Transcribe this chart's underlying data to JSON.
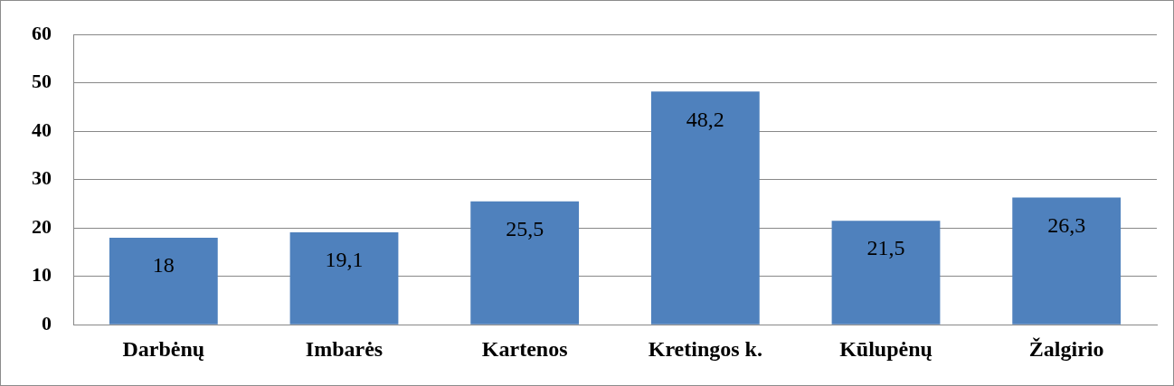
{
  "chart_data": {
    "type": "bar",
    "categories": [
      "Darbėnų",
      "Imbarės",
      "Kartenos",
      "Kretingos k.",
      "Kūlupėnų",
      "Žalgirio"
    ],
    "values": [
      18,
      19.1,
      25.5,
      48.2,
      21.5,
      26.3
    ],
    "value_labels": [
      "18",
      "19,1",
      "25,5",
      "48,2",
      "21,5",
      "26,3"
    ],
    "color": "#4f81bd",
    "ylim": [
      0,
      60
    ],
    "yticks": [
      0,
      10,
      20,
      30,
      40,
      50,
      60
    ],
    "grid": "y",
    "legend": false
  }
}
